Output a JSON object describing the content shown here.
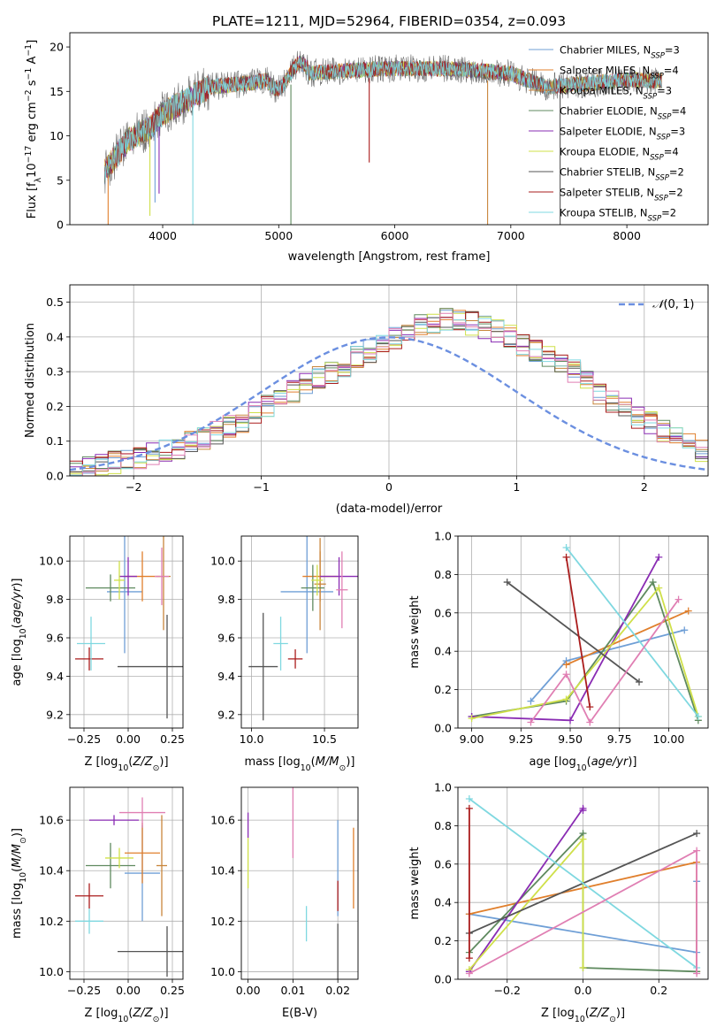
{
  "figure_title": "PLATE=1211, MJD=52964, FIBERID=0354, z=0.093",
  "colors": {
    "Chabrier MILES": "#6f9fd6",
    "Salpeter MILES": "#e07f2c",
    "Kroupa MILES": "#c8863c",
    "Chabrier ELODIE": "#5f8a5f",
    "Salpeter ELODIE": "#8a2cb3",
    "Kroupa ELODIE": "#cfe049",
    "Chabrier STELIB": "#555555",
    "Salpeter STELIB": "#aa1c1c",
    "Kroupa STELIB": "#7fd8e0",
    "pink": "#e07fb3",
    "normal": "#6b8fe0"
  },
  "chart_data": [
    {
      "type": "line",
      "title": "PLATE=1211, MJD=52964, FIBERID=0354, z=0.093",
      "xlabel": "wavelength [Angstrom, rest frame]",
      "ylabel": "Flux [f_λ 10^-17 erg cm^-2 s^-1 A^-1]",
      "xlim": [
        3200,
        8700
      ],
      "ylim": [
        0,
        21.6
      ],
      "xticks": [
        4000,
        5000,
        6000,
        7000,
        8000
      ],
      "yticks": [
        0,
        5,
        10,
        15,
        20
      ],
      "grid": false,
      "legend_position": "top-right",
      "legend": [
        {
          "label": "Chabrier MILES, N",
          "sub": "SSP",
          "suffix": "=3",
          "color": "#6f9fd6"
        },
        {
          "label": "Salpeter MILES, N",
          "sub": "SSP",
          "suffix": "=4",
          "color": "#e07f2c"
        },
        {
          "label": "Kroupa MILES, N",
          "sub": "SSP",
          "suffix": "=3",
          "color": "#c8863c"
        },
        {
          "label": "Chabrier ELODIE, N",
          "sub": "SSP",
          "suffix": "=4",
          "color": "#5f8a5f"
        },
        {
          "label": "Salpeter ELODIE, N",
          "sub": "SSP",
          "suffix": "=3",
          "color": "#8a2cb3"
        },
        {
          "label": "Kroupa ELODIE, N",
          "sub": "SSP",
          "suffix": "=4",
          "color": "#cfe049"
        },
        {
          "label": "Chabrier STELIB, N",
          "sub": "SSP",
          "suffix": "=2",
          "color": "#555555"
        },
        {
          "label": "Salpeter STELIB, N",
          "sub": "SSP",
          "suffix": "=2",
          "color": "#aa1c1c"
        },
        {
          "label": "Kroupa STELIB, N",
          "sub": "SSP",
          "suffix": "=2",
          "color": "#7fd8e0"
        }
      ],
      "continuum_anchors": [
        [
          3500,
          6.0
        ],
        [
          3700,
          9.5
        ],
        [
          3900,
          11.0
        ],
        [
          4000,
          12.5
        ],
        [
          4200,
          14.0
        ],
        [
          4400,
          15.5
        ],
        [
          4800,
          16.0
        ],
        [
          5200,
          17.0
        ],
        [
          5800,
          17.5
        ],
        [
          6200,
          17.6
        ],
        [
          6563,
          17.5
        ],
        [
          7000,
          17.0
        ],
        [
          7300,
          15.5
        ],
        [
          7600,
          15.8
        ],
        [
          8000,
          16.3
        ],
        [
          8300,
          16.2
        ]
      ],
      "absorption_spikes": [
        [
          3530,
          0.0
        ],
        [
          3890,
          1.0
        ],
        [
          3934,
          2.5
        ],
        [
          3969,
          3.5
        ],
        [
          4260,
          0.0
        ],
        [
          5105,
          0.0
        ],
        [
          5780,
          7.0
        ],
        [
          6800,
          0.0
        ],
        [
          7425,
          0.0
        ]
      ]
    },
    {
      "type": "area",
      "xlabel": "(data-model)/error",
      "ylabel": "Normed distribution",
      "xlim": [
        -2.5,
        2.5
      ],
      "ylim": [
        0,
        0.55
      ],
      "xticks": [
        -2,
        -1,
        0,
        1,
        2
      ],
      "xtick_labels": [
        "−2",
        "−1",
        "0",
        "1",
        "2"
      ],
      "yticks": [
        0,
        0.1,
        0.2,
        0.3,
        0.4,
        0.5
      ],
      "grid": true,
      "legend_position": "top-right",
      "legend_label": "N(0,1)",
      "bin_width": 0.1,
      "x_start": -2.5,
      "base_values": [
        0.02,
        0.025,
        0.03,
        0.04,
        0.045,
        0.05,
        0.06,
        0.07,
        0.08,
        0.095,
        0.11,
        0.125,
        0.14,
        0.16,
        0.18,
        0.2,
        0.22,
        0.24,
        0.26,
        0.28,
        0.3,
        0.32,
        0.34,
        0.36,
        0.38,
        0.4,
        0.42,
        0.43,
        0.44,
        0.45,
        0.45,
        0.44,
        0.43,
        0.42,
        0.4,
        0.38,
        0.36,
        0.34,
        0.32,
        0.3,
        0.27,
        0.24,
        0.21,
        0.19,
        0.17,
        0.15,
        0.13,
        0.11,
        0.09,
        0.075
      ]
    },
    {
      "type": "scatter",
      "xlabel": "Z [log10(Z/Z☉)]",
      "ylabel": "age  [log10(age/yr)]",
      "xlim": [
        -0.33,
        0.31
      ],
      "ylim": [
        9.13,
        10.13
      ],
      "xticks": [
        -0.25,
        0.0,
        0.25
      ],
      "xtick_labels": [
        "−0.25",
        "0.00",
        "0.25"
      ],
      "yticks": [
        9.2,
        9.4,
        9.6,
        9.8,
        10.0
      ],
      "grid": true,
      "points": [
        {
          "x": -0.02,
          "y": 9.84,
          "xerr": 0.1,
          "yerr": 0.32,
          "color": "#6f9fd6"
        },
        {
          "x": 0.08,
          "y": 9.92,
          "xerr": 0.1,
          "yerr": 0.13,
          "color": "#e07f2c"
        },
        {
          "x": 0.2,
          "y": 9.92,
          "xerr": 0.04,
          "yerr": 0.28,
          "color": "#c8863c"
        },
        {
          "x": -0.1,
          "y": 9.86,
          "xerr": 0.14,
          "yerr": 0.07,
          "color": "#5f8a5f"
        },
        {
          "x": 0.0,
          "y": 9.92,
          "xerr": 0.05,
          "yerr": 0.1,
          "color": "#8a2cb3"
        },
        {
          "x": -0.05,
          "y": 9.9,
          "xerr": 0.03,
          "yerr": 0.1,
          "color": "#cfe049"
        },
        {
          "x": 0.22,
          "y": 9.45,
          "xerr": 0.28,
          "yerr": 0.27,
          "color": "#555555"
        },
        {
          "x": -0.22,
          "y": 9.49,
          "xerr": 0.08,
          "yerr": 0.06,
          "color": "#aa1c1c"
        },
        {
          "x": -0.21,
          "y": 9.57,
          "xerr": 0.08,
          "yerr": 0.14,
          "color": "#7fd8e0"
        },
        {
          "x": 0.19,
          "y": 9.92,
          "xerr": 0.04,
          "yerr": 0.15,
          "color": "#e07fb3"
        }
      ]
    },
    {
      "type": "scatter",
      "xlabel": "mass [log10(M/M☉)]",
      "ylabel": "",
      "xlim": [
        9.93,
        10.73
      ],
      "ylim": [
        9.13,
        10.13
      ],
      "xticks": [
        10.0,
        10.5
      ],
      "yticks": [
        9.2,
        9.4,
        9.6,
        9.8,
        10.0
      ],
      "grid": true,
      "points": [
        {
          "x": 10.38,
          "y": 9.84,
          "xerr": 0.18,
          "yerr": 0.32,
          "color": "#6f9fd6"
        },
        {
          "x": 10.47,
          "y": 9.92,
          "xerr": 0.12,
          "yerr": 0.13,
          "color": "#e07f2c"
        },
        {
          "x": 10.47,
          "y": 9.88,
          "xerr": 0.04,
          "yerr": 0.24,
          "color": "#c8863c"
        },
        {
          "x": 10.42,
          "y": 9.86,
          "xerr": 0.08,
          "yerr": 0.12,
          "color": "#5f8a5f"
        },
        {
          "x": 10.6,
          "y": 9.92,
          "xerr": 0.13,
          "yerr": 0.1,
          "color": "#8a2cb3"
        },
        {
          "x": 10.45,
          "y": 9.9,
          "xerr": 0.04,
          "yerr": 0.08,
          "color": "#cfe049"
        },
        {
          "x": 10.08,
          "y": 9.45,
          "xerr": 0.1,
          "yerr": 0.28,
          "color": "#555555"
        },
        {
          "x": 10.3,
          "y": 9.49,
          "xerr": 0.05,
          "yerr": 0.05,
          "color": "#aa1c1c"
        },
        {
          "x": 10.2,
          "y": 9.57,
          "xerr": 0.05,
          "yerr": 0.14,
          "color": "#7fd8e0"
        },
        {
          "x": 10.62,
          "y": 9.85,
          "xerr": 0.04,
          "yerr": 0.2,
          "color": "#e07fb3"
        }
      ]
    },
    {
      "type": "line",
      "xlabel": "age  [log10(age/yr)]",
      "ylabel": "mass weight",
      "xlim": [
        8.93,
        10.2
      ],
      "ylim": [
        0,
        1
      ],
      "xticks": [
        9.0,
        9.25,
        9.5,
        9.75,
        10.0
      ],
      "xtick_labels": [
        "9.00",
        "9.25",
        "9.50",
        "9.75",
        "10.00"
      ],
      "yticks": [
        0,
        0.2,
        0.4,
        0.6,
        0.8,
        1.0
      ],
      "grid": true,
      "series": [
        {
          "color": "#6f9fd6",
          "points": [
            [
              9.3,
              0.14
            ],
            [
              9.48,
              0.35
            ],
            [
              10.08,
              0.51
            ]
          ]
        },
        {
          "color": "#e07f2c",
          "points": [
            [
              9.48,
              0.33
            ],
            [
              10.1,
              0.61
            ]
          ]
        },
        {
          "color": "#5f8a5f",
          "points": [
            [
              9.0,
              0.06
            ],
            [
              9.48,
              0.14
            ],
            [
              9.92,
              0.76
            ],
            [
              10.15,
              0.04
            ]
          ]
        },
        {
          "color": "#8a2cb3",
          "points": [
            [
              9.0,
              0.06
            ],
            [
              9.5,
              0.04
            ],
            [
              9.95,
              0.89
            ]
          ]
        },
        {
          "color": "#cfe049",
          "points": [
            [
              9.0,
              0.05
            ],
            [
              9.48,
              0.15
            ],
            [
              9.95,
              0.73
            ],
            [
              10.15,
              0.06
            ]
          ]
        },
        {
          "color": "#555555",
          "points": [
            [
              9.18,
              0.76
            ],
            [
              9.85,
              0.24
            ]
          ]
        },
        {
          "color": "#aa1c1c",
          "points": [
            [
              9.48,
              0.89
            ],
            [
              9.6,
              0.11
            ]
          ]
        },
        {
          "color": "#7fd8e0",
          "points": [
            [
              9.48,
              0.94
            ],
            [
              10.15,
              0.06
            ]
          ]
        },
        {
          "color": "#e07fb3",
          "points": [
            [
              9.3,
              0.03
            ],
            [
              9.48,
              0.28
            ],
            [
              9.6,
              0.03
            ],
            [
              10.05,
              0.67
            ]
          ]
        }
      ]
    },
    {
      "type": "scatter",
      "xlabel": "Z [log10(Z/Z☉)]",
      "ylabel": "mass [log10(M/M☉)]",
      "xlim": [
        -0.33,
        0.31
      ],
      "ylim": [
        9.97,
        10.73
      ],
      "xticks": [
        -0.25,
        0.0,
        0.25
      ],
      "xtick_labels": [
        "−0.25",
        "0.00",
        "0.25"
      ],
      "yticks": [
        10.0,
        10.2,
        10.4,
        10.6
      ],
      "grid": true,
      "points": [
        {
          "x": 0.08,
          "y": 10.39,
          "xerr": 0.1,
          "yerr": 0.19,
          "color": "#6f9fd6"
        },
        {
          "x": 0.08,
          "y": 10.47,
          "xerr": 0.1,
          "yerr": 0.12,
          "color": "#e07f2c"
        },
        {
          "x": 0.19,
          "y": 10.42,
          "xerr": 0.03,
          "yerr": 0.2,
          "color": "#c8863c"
        },
        {
          "x": -0.1,
          "y": 10.42,
          "xerr": 0.14,
          "yerr": 0.09,
          "color": "#5f8a5f"
        },
        {
          "x": -0.08,
          "y": 10.6,
          "xerr": 0.14,
          "yerr": 0.02,
          "color": "#8a2cb3"
        },
        {
          "x": -0.05,
          "y": 10.45,
          "xerr": 0.08,
          "yerr": 0.04,
          "color": "#cfe049"
        },
        {
          "x": 0.22,
          "y": 10.08,
          "xerr": 0.28,
          "yerr": 0.1,
          "color": "#555555"
        },
        {
          "x": -0.22,
          "y": 10.3,
          "xerr": 0.08,
          "yerr": 0.05,
          "color": "#aa1c1c"
        },
        {
          "x": -0.22,
          "y": 10.2,
          "xerr": 0.08,
          "yerr": 0.05,
          "color": "#7fd8e0"
        },
        {
          "x": 0.08,
          "y": 10.63,
          "xerr": 0.13,
          "yerr": 0.06,
          "color": "#e07fb3"
        }
      ]
    },
    {
      "type": "scatter",
      "xlabel": "E(B-V)",
      "ylabel": "",
      "xlim": [
        -0.0015,
        0.0245
      ],
      "ylim": [
        9.97,
        10.73
      ],
      "xticks": [
        0.0,
        0.01,
        0.02
      ],
      "xtick_labels": [
        "0.00",
        "0.01",
        "0.02"
      ],
      "yticks": [
        10.0,
        10.2,
        10.4,
        10.6
      ],
      "grid": true,
      "points": [
        {
          "x": 0.02,
          "y": 10.41,
          "yerr": 0.19,
          "color": "#6f9fd6"
        },
        {
          "x": 0.0235,
          "y": 10.41,
          "yerr": 0.16,
          "color": "#e07f2c"
        },
        {
          "x": 0.0,
          "y": 10.58,
          "yerr": 0.05,
          "color": "#8a2cb3"
        },
        {
          "x": 0.0,
          "y": 10.43,
          "yerr": 0.1,
          "color": "#cfe049"
        },
        {
          "x": 0.02,
          "y": 10.08,
          "yerr": 0.11,
          "color": "#555555"
        },
        {
          "x": 0.02,
          "y": 10.3,
          "yerr": 0.06,
          "color": "#aa1c1c"
        },
        {
          "x": 0.013,
          "y": 10.19,
          "yerr": 0.07,
          "color": "#7fd8e0"
        },
        {
          "x": 0.01,
          "y": 10.6,
          "yerr": 0.15,
          "color": "#e07fb3"
        }
      ]
    },
    {
      "type": "line",
      "xlabel": "Z [log10(Z/Z☉)]",
      "ylabel": "mass weight",
      "xlim": [
        -0.33,
        0.33
      ],
      "ylim": [
        0,
        1
      ],
      "xticks": [
        -0.2,
        0.0,
        0.2
      ],
      "xtick_labels": [
        "−0.2",
        "0.0",
        "0.2"
      ],
      "yticks": [
        0,
        0.2,
        0.4,
        0.6,
        0.8,
        1.0
      ],
      "grid": true,
      "series": [
        {
          "color": "#6f9fd6",
          "points": [
            [
              -0.3,
              0.34
            ],
            [
              0.3,
              0.14
            ],
            [
              0.3,
              0.51
            ]
          ]
        },
        {
          "color": "#e07f2c",
          "points": [
            [
              -0.3,
              0.34
            ],
            [
              0.3,
              0.61
            ],
            [
              0.3,
              0.04
            ]
          ]
        },
        {
          "color": "#5f8a5f",
          "points": [
            [
              -0.3,
              0.14
            ],
            [
              0.0,
              0.76
            ],
            [
              0.0,
              0.06
            ],
            [
              0.3,
              0.04
            ]
          ]
        },
        {
          "color": "#8a2cb3",
          "points": [
            [
              -0.3,
              0.04
            ],
            [
              0.0,
              0.89
            ],
            [
              0.0,
              0.88
            ]
          ]
        },
        {
          "color": "#cfe049",
          "points": [
            [
              -0.3,
              0.05
            ],
            [
              0.0,
              0.73
            ],
            [
              0.0,
              0.06
            ]
          ]
        },
        {
          "color": "#555555",
          "points": [
            [
              -0.3,
              0.24
            ],
            [
              0.3,
              0.76
            ]
          ]
        },
        {
          "color": "#aa1c1c",
          "points": [
            [
              -0.3,
              0.89
            ],
            [
              -0.3,
              0.11
            ]
          ]
        },
        {
          "color": "#7fd8e0",
          "points": [
            [
              -0.3,
              0.94
            ],
            [
              0.3,
              0.06
            ]
          ]
        },
        {
          "color": "#e07fb3",
          "points": [
            [
              -0.3,
              0.03
            ],
            [
              0.3,
              0.67
            ],
            [
              0.3,
              0.03
            ]
          ]
        }
      ]
    }
  ]
}
